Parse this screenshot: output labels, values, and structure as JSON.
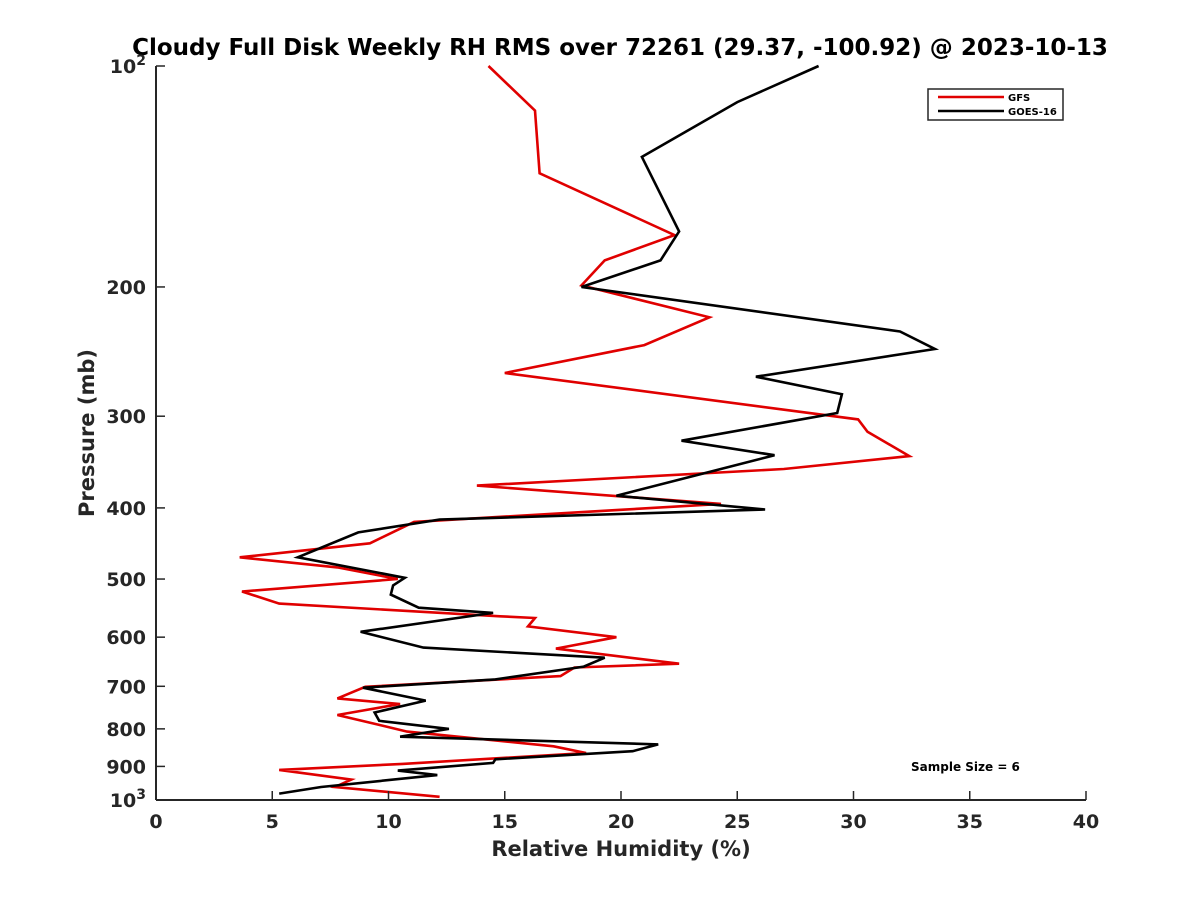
{
  "chart_data": {
    "type": "line",
    "title": "Cloudy Full Disk Weekly RH RMS over 72261 (29.37, -100.92) @ 2023-10-13",
    "xlabel": "Relative Humidity (%)",
    "ylabel": "Pressure (mb)",
    "xlim": [
      0,
      40
    ],
    "ylim": [
      100,
      1000
    ],
    "y_scale": "log",
    "y_reversed": true,
    "x_ticks": [
      0,
      5,
      10,
      15,
      20,
      25,
      30,
      35,
      40
    ],
    "y_ticks": [
      {
        "value": 100,
        "base": "10",
        "exp": "2"
      },
      {
        "value": 200,
        "label": "200"
      },
      {
        "value": 300,
        "label": "300"
      },
      {
        "value": 400,
        "label": "400"
      },
      {
        "value": 500,
        "label": "500"
      },
      {
        "value": 600,
        "label": "600"
      },
      {
        "value": 700,
        "label": "700"
      },
      {
        "value": 800,
        "label": "800"
      },
      {
        "value": 900,
        "label": "900"
      },
      {
        "value": 1000,
        "base": "10",
        "exp": "3"
      }
    ],
    "grid": false,
    "legend_position": "top-right",
    "annotation": "Sample Size = 6",
    "series": [
      {
        "name": "GFS",
        "color": "#e00000",
        "points": [
          [
            14.3,
            100
          ],
          [
            16.3,
            115
          ],
          [
            16.5,
            140
          ],
          [
            22.3,
            170
          ],
          [
            19.3,
            184
          ],
          [
            18.3,
            199
          ],
          [
            23.8,
            220
          ],
          [
            21.0,
            240
          ],
          [
            15.0,
            262
          ],
          [
            30.2,
            303
          ],
          [
            30.6,
            315
          ],
          [
            32.4,
            340
          ],
          [
            27.0,
            354
          ],
          [
            13.8,
            373
          ],
          [
            24.3,
            395
          ],
          [
            11.1,
            418
          ],
          [
            9.2,
            447
          ],
          [
            3.6,
            467
          ],
          [
            7.8,
            482
          ],
          [
            10.4,
            500
          ],
          [
            3.7,
            520
          ],
          [
            5.3,
            540
          ],
          [
            14.8,
            562
          ],
          [
            16.3,
            565
          ],
          [
            16.0,
            580
          ],
          [
            19.8,
            600
          ],
          [
            17.2,
            622
          ],
          [
            22.5,
            652
          ],
          [
            18.0,
            660
          ],
          [
            17.4,
            678
          ],
          [
            9.0,
            701
          ],
          [
            7.8,
            727
          ],
          [
            10.5,
            740
          ],
          [
            7.8,
            766
          ],
          [
            9.6,
            790
          ],
          [
            10.8,
            807
          ],
          [
            17.1,
            845
          ],
          [
            18.5,
            863
          ],
          [
            10.6,
            893
          ],
          [
            5.3,
            910
          ],
          [
            8.4,
            938
          ],
          [
            7.7,
            960
          ],
          [
            12.2,
            990
          ]
        ]
      },
      {
        "name": "GOES-16",
        "color": "#000000",
        "points": [
          [
            28.5,
            100
          ],
          [
            25.0,
            112
          ],
          [
            20.9,
            133
          ],
          [
            22.5,
            168
          ],
          [
            21.7,
            184
          ],
          [
            18.3,
            200
          ],
          [
            32.0,
            230
          ],
          [
            33.5,
            243
          ],
          [
            25.8,
            265
          ],
          [
            29.5,
            280
          ],
          [
            29.3,
            297
          ],
          [
            22.6,
            324
          ],
          [
            26.6,
            339
          ],
          [
            24.0,
            356
          ],
          [
            19.8,
            385
          ],
          [
            26.2,
            402
          ],
          [
            12.2,
            415
          ],
          [
            8.7,
            432
          ],
          [
            6.1,
            467
          ],
          [
            10.7,
            498
          ],
          [
            10.2,
            510
          ],
          [
            10.1,
            525
          ],
          [
            11.3,
            547
          ],
          [
            14.5,
            556
          ],
          [
            8.8,
            590
          ],
          [
            11.5,
            620
          ],
          [
            19.3,
            640
          ],
          [
            18.4,
            658
          ],
          [
            14.6,
            685
          ],
          [
            8.9,
            703
          ],
          [
            11.6,
            732
          ],
          [
            9.4,
            760
          ],
          [
            9.6,
            780
          ],
          [
            12.6,
            800
          ],
          [
            10.5,
            820
          ],
          [
            21.6,
            840
          ],
          [
            20.5,
            858
          ],
          [
            14.6,
            880
          ],
          [
            14.5,
            890
          ],
          [
            10.4,
            912
          ],
          [
            12.1,
            925
          ],
          [
            7.1,
            960
          ],
          [
            5.3,
            980
          ]
        ]
      }
    ]
  }
}
